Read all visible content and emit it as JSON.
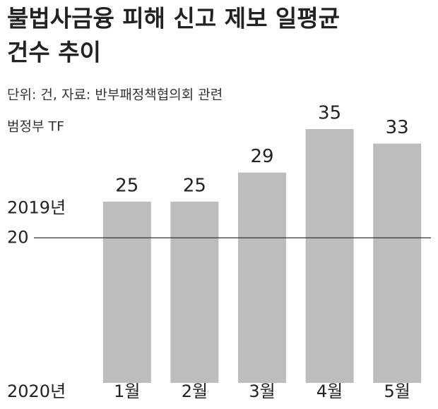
{
  "chart_data": {
    "type": "bar",
    "title": [
      "불법사금융 피해 신고 제보 일평균",
      "건수 추이"
    ],
    "subtitle": [
      "단위: 건, 자료: 반부패정책협의회 관련",
      "범정부 TF"
    ],
    "x_label": "2020년",
    "categories": [
      "1월",
      "2월",
      "3월",
      "4월",
      "5월"
    ],
    "values": [
      25,
      25,
      29,
      35,
      33
    ],
    "color": "#bdbdbd",
    "ylim": [
      0,
      35
    ],
    "reference_line": {
      "label": "2019년",
      "value": 20,
      "color": "#333333"
    }
  }
}
